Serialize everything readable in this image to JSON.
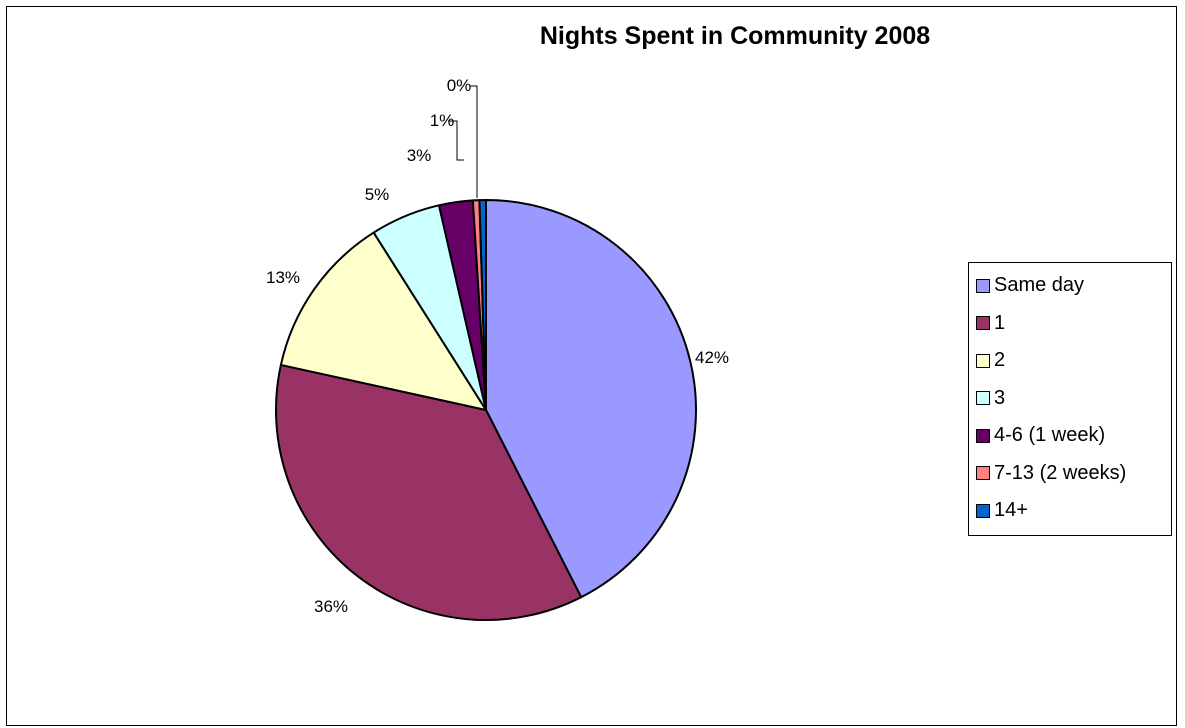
{
  "chart_data": {
    "type": "pie",
    "title": "Nights Spent in Community 2008",
    "legend_position": "right",
    "categories": [
      "Same day",
      "1",
      "2",
      "3",
      "4-6 (1 week)",
      "7-13 (2 weeks)",
      "14+"
    ],
    "values": [
      42,
      36,
      13,
      5,
      3,
      1,
      0
    ],
    "data_labels": [
      "42%",
      "36%",
      "13%",
      "5%",
      "3%",
      "1%",
      "0%"
    ],
    "colors": [
      "#9999ff",
      "#993366",
      "#ffffcc",
      "#ccffff",
      "#660066",
      "#ff8080",
      "#0066cc"
    ]
  }
}
